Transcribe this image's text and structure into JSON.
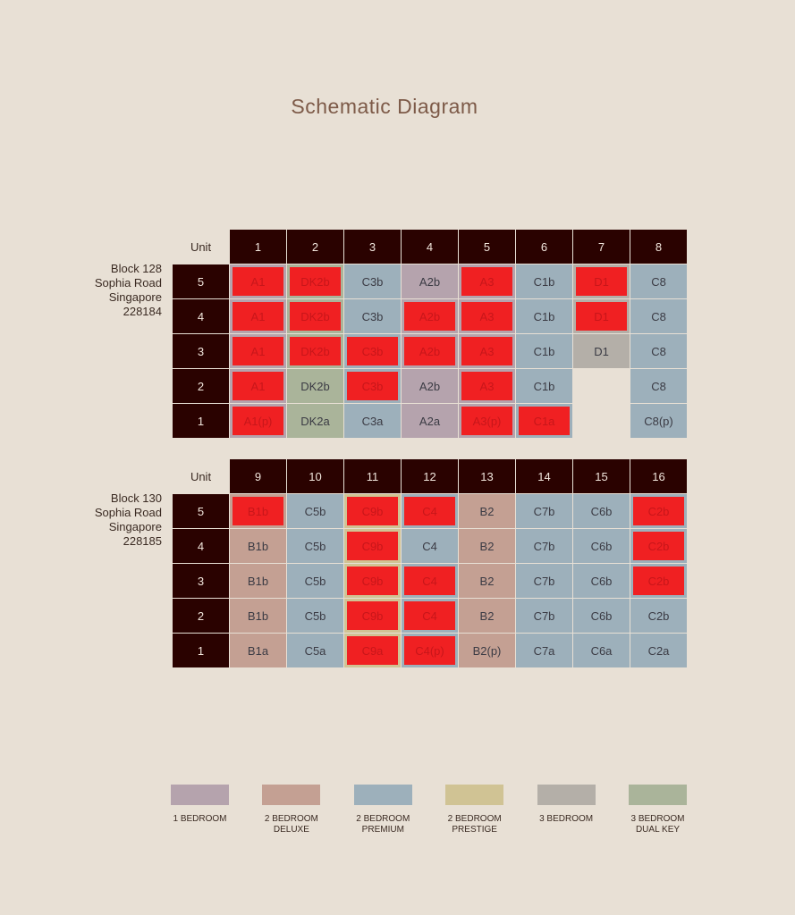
{
  "title": "Schematic Diagram",
  "types": {
    "1BR": {
      "label": "1 BEDROOM",
      "color": "#b5a3ad"
    },
    "2BRD": {
      "label": "2 BEDROOM DELUXE",
      "color": "#c4a093"
    },
    "2BRP": {
      "label": "2 BEDROOM PREMIUM",
      "color": "#9db0bb"
    },
    "2BRPR": {
      "label": "2 BEDROOM PRESTIGE",
      "color": "#d0c394"
    },
    "3BR": {
      "label": "3 BEDROOM",
      "color": "#b4afa8"
    },
    "3BRDK": {
      "label": "3 BEDROOM DUAL KEY",
      "color": "#aab49a"
    }
  },
  "legend": [
    {
      "type": "1BR",
      "line1": "1 BEDROOM",
      "line2": ""
    },
    {
      "type": "2BRD",
      "line1": "2 BEDROOM",
      "line2": "DELUXE"
    },
    {
      "type": "2BRP",
      "line1": "2 BEDROOM",
      "line2": "PREMIUM"
    },
    {
      "type": "2BRPR",
      "line1": "2 BEDROOM",
      "line2": "PRESTIGE"
    },
    {
      "type": "3BR",
      "line1": "3 BEDROOM",
      "line2": ""
    },
    {
      "type": "3BRDK",
      "line1": "3 BEDROOM",
      "line2": "DUAL KEY"
    }
  ],
  "sold_color": "#f02022",
  "blocks": [
    {
      "label_lines": [
        "Block 128",
        "Sophia Road",
        "Singapore",
        "228184"
      ],
      "unit_header": "Unit",
      "units": [
        "1",
        "2",
        "3",
        "4",
        "5",
        "6",
        "7",
        "8"
      ],
      "floors": [
        {
          "floor": "5",
          "cells": [
            [
              "A1",
              "1BR",
              1
            ],
            [
              "DK2b",
              "3BRDK",
              1
            ],
            [
              "C3b",
              "2BRP",
              0
            ],
            [
              "A2b",
              "1BR",
              0
            ],
            [
              "A3",
              "1BR",
              1
            ],
            [
              "C1b",
              "2BRP",
              0
            ],
            [
              "D1",
              "3BR",
              1
            ],
            [
              "C8",
              "2BRP",
              0
            ]
          ]
        },
        {
          "floor": "4",
          "cells": [
            [
              "A1",
              "1BR",
              1
            ],
            [
              "DK2b",
              "3BRDK",
              1
            ],
            [
              "C3b",
              "2BRP",
              0
            ],
            [
              "A2b",
              "1BR",
              1
            ],
            [
              "A3",
              "1BR",
              1
            ],
            [
              "C1b",
              "2BRP",
              0
            ],
            [
              "D1",
              "3BR",
              1
            ],
            [
              "C8",
              "2BRP",
              0
            ]
          ]
        },
        {
          "floor": "3",
          "cells": [
            [
              "A1",
              "1BR",
              1
            ],
            [
              "DK2b",
              "3BRDK",
              1
            ],
            [
              "C3b",
              "2BRP",
              1
            ],
            [
              "A2b",
              "1BR",
              1
            ],
            [
              "A3",
              "1BR",
              1
            ],
            [
              "C1b",
              "2BRP",
              0
            ],
            [
              "D1",
              "3BR",
              0
            ],
            [
              "C8",
              "2BRP",
              0
            ]
          ]
        },
        {
          "floor": "2",
          "cells": [
            [
              "A1",
              "1BR",
              1
            ],
            [
              "DK2b",
              "3BRDK",
              0
            ],
            [
              "C3b",
              "2BRP",
              1
            ],
            [
              "A2b",
              "1BR",
              0
            ],
            [
              "A3",
              "1BR",
              1
            ],
            [
              "C1b",
              "2BRP",
              0
            ],
            null,
            [
              "C8",
              "2BRP",
              0
            ]
          ]
        },
        {
          "floor": "1",
          "cells": [
            [
              "A1(p)",
              "1BR",
              1
            ],
            [
              "DK2a",
              "3BRDK",
              0
            ],
            [
              "C3a",
              "2BRP",
              0
            ],
            [
              "A2a",
              "1BR",
              0
            ],
            [
              "A3(p)",
              "1BR",
              1
            ],
            [
              "C1a",
              "2BRP",
              1
            ],
            null,
            [
              "C8(p)",
              "2BRP",
              0
            ]
          ]
        }
      ]
    },
    {
      "label_lines": [
        "Block 130",
        "Sophia Road",
        "Singapore",
        "228185"
      ],
      "unit_header": "Unit",
      "units": [
        "9",
        "10",
        "11",
        "12",
        "13",
        "14",
        "15",
        "16"
      ],
      "floors": [
        {
          "floor": "5",
          "cells": [
            [
              "B1b",
              "2BRD",
              1
            ],
            [
              "C5b",
              "2BRP",
              0
            ],
            [
              "C9b",
              "2BRPR",
              1
            ],
            [
              "C4",
              "2BRP",
              1
            ],
            [
              "B2",
              "2BRD",
              0
            ],
            [
              "C7b",
              "2BRP",
              0
            ],
            [
              "C6b",
              "2BRP",
              0
            ],
            [
              "C2b",
              "2BRP",
              1
            ]
          ]
        },
        {
          "floor": "4",
          "cells": [
            [
              "B1b",
              "2BRD",
              0
            ],
            [
              "C5b",
              "2BRP",
              0
            ],
            [
              "C9b",
              "2BRPR",
              1
            ],
            [
              "C4",
              "2BRP",
              0
            ],
            [
              "B2",
              "2BRD",
              0
            ],
            [
              "C7b",
              "2BRP",
              0
            ],
            [
              "C6b",
              "2BRP",
              0
            ],
            [
              "C2b",
              "2BRP",
              1
            ]
          ]
        },
        {
          "floor": "3",
          "cells": [
            [
              "B1b",
              "2BRD",
              0
            ],
            [
              "C5b",
              "2BRP",
              0
            ],
            [
              "C9b",
              "2BRPR",
              1
            ],
            [
              "C4",
              "2BRP",
              1
            ],
            [
              "B2",
              "2BRD",
              0
            ],
            [
              "C7b",
              "2BRP",
              0
            ],
            [
              "C6b",
              "2BRP",
              0
            ],
            [
              "C2b",
              "2BRP",
              1
            ]
          ]
        },
        {
          "floor": "2",
          "cells": [
            [
              "B1b",
              "2BRD",
              0
            ],
            [
              "C5b",
              "2BRP",
              0
            ],
            [
              "C9b",
              "2BRPR",
              1
            ],
            [
              "C4",
              "2BRP",
              1
            ],
            [
              "B2",
              "2BRD",
              0
            ],
            [
              "C7b",
              "2BRP",
              0
            ],
            [
              "C6b",
              "2BRP",
              0
            ],
            [
              "C2b",
              "2BRP",
              0
            ]
          ]
        },
        {
          "floor": "1",
          "cells": [
            [
              "B1a",
              "2BRD",
              0
            ],
            [
              "C5a",
              "2BRP",
              0
            ],
            [
              "C9a",
              "2BRPR",
              1
            ],
            [
              "C4(p)",
              "2BRP",
              1
            ],
            [
              "B2(p)",
              "2BRD",
              0
            ],
            [
              "C7a",
              "2BRP",
              0
            ],
            [
              "C6a",
              "2BRP",
              0
            ],
            [
              "C2a",
              "2BRP",
              0
            ]
          ]
        }
      ]
    }
  ]
}
